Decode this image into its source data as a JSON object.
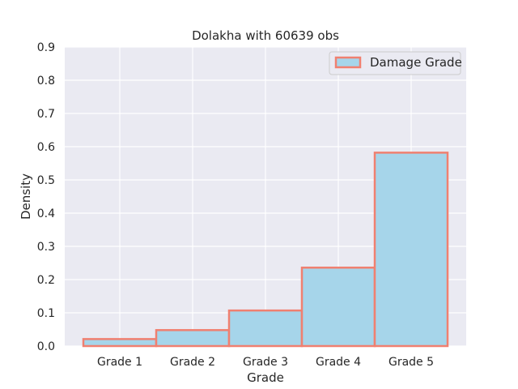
{
  "chart_data": {
    "type": "bar",
    "title": "Dolakha with 60639 obs",
    "xlabel": "Grade",
    "ylabel": "Density",
    "categories": [
      "Grade 1",
      "Grade 2",
      "Grade 3",
      "Grade 4",
      "Grade 5"
    ],
    "series": [
      {
        "name": "Damage Grade",
        "values": [
          0.021,
          0.048,
          0.107,
          0.236,
          0.582
        ]
      }
    ],
    "ylim": [
      0,
      0.9
    ],
    "yticks": [
      "0.0",
      "0.1",
      "0.2",
      "0.3",
      "0.4",
      "0.5",
      "0.6",
      "0.7",
      "0.8",
      "0.9"
    ],
    "grid": true,
    "legend_position": "top-right",
    "colors": {
      "plot_background": "#eaeaf2",
      "grid": "#ffffff",
      "bar_fill": "#a6d5ea",
      "bar_edge": "#f08070"
    }
  }
}
